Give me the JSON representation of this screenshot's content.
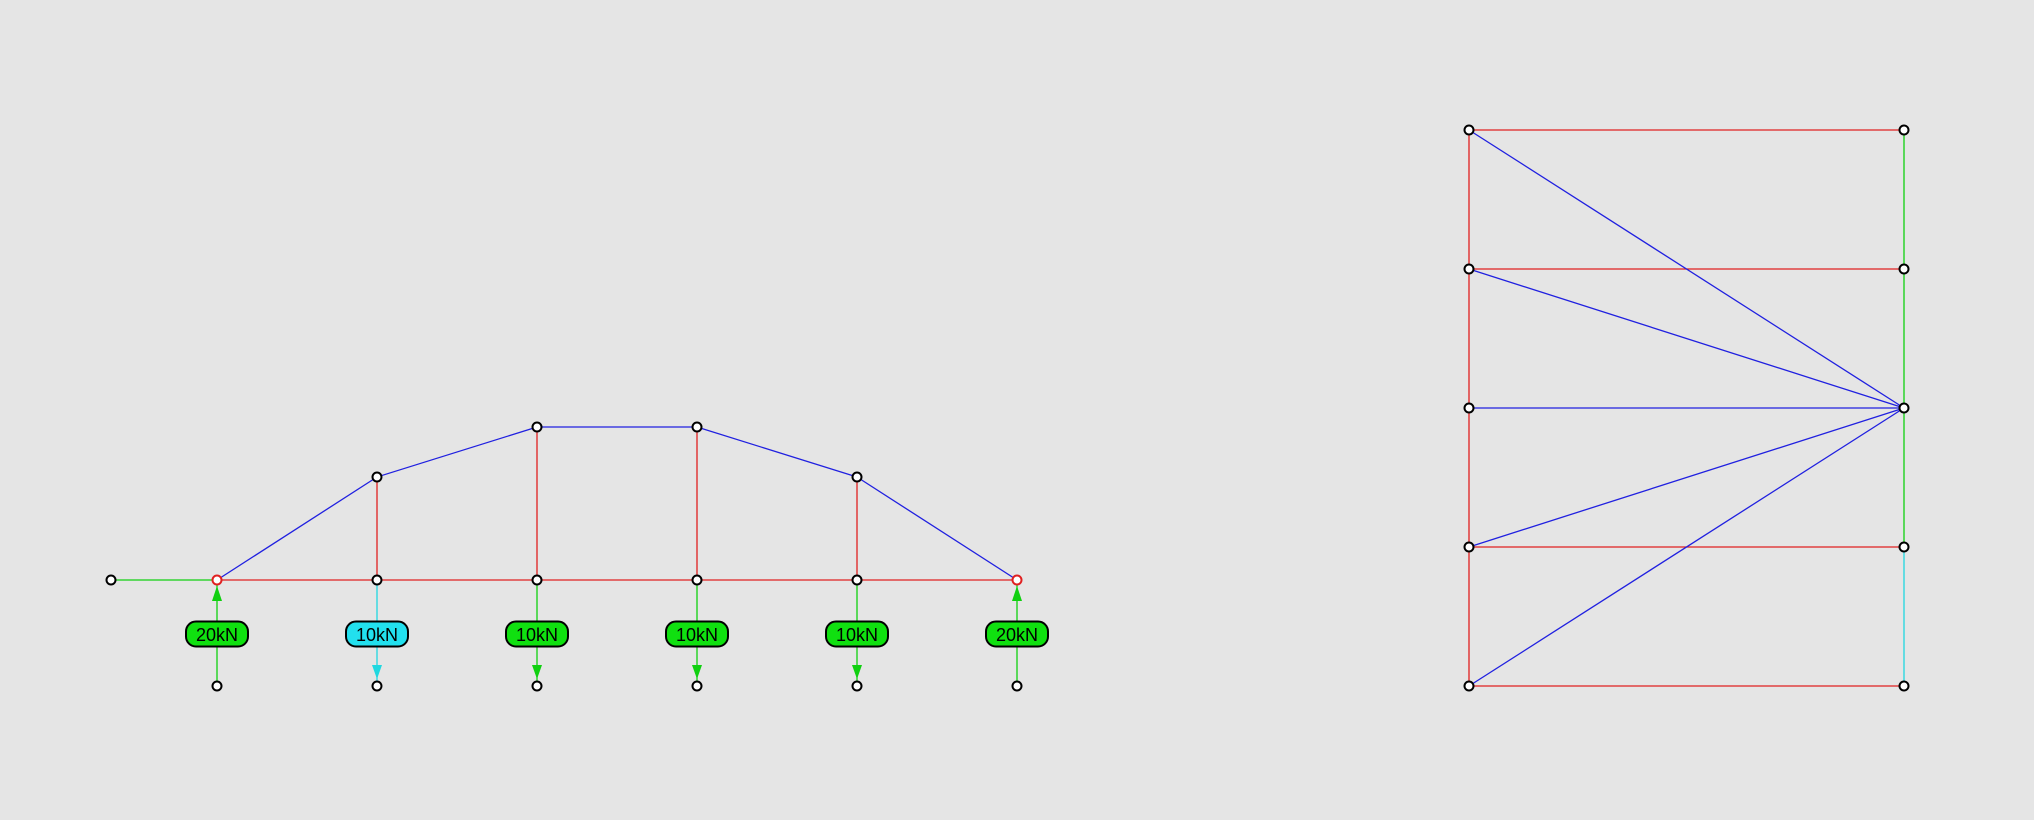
{
  "colors": {
    "background": "#e5e5e5",
    "tension_member": "#e02020",
    "compression_member": "#2020e0",
    "load_line_applied": "#10d010",
    "load_line_selected": "#20d8e0",
    "label_fill_applied": "#10e010",
    "label_fill_selected": "#22e0ee",
    "support_node": "#e02020",
    "free_node": "#000000"
  },
  "truss": {
    "support_nodes": 2,
    "free_nodes": 10,
    "members": {
      "top_chord": 5,
      "bottom_chord": 5,
      "verticals": 4,
      "diagonals": 0
    }
  },
  "loads": [
    {
      "label": "20kN",
      "direction": "up",
      "kind": "reaction",
      "state": "applied"
    },
    {
      "label": "10kN",
      "direction": "down",
      "kind": "applied",
      "state": "selected"
    },
    {
      "label": "10kN",
      "direction": "down",
      "kind": "applied",
      "state": "applied"
    },
    {
      "label": "10kN",
      "direction": "down",
      "kind": "applied",
      "state": "applied"
    },
    {
      "label": "10kN",
      "direction": "down",
      "kind": "applied",
      "state": "applied"
    },
    {
      "label": "20kN",
      "direction": "up",
      "kind": "reaction",
      "state": "applied"
    }
  ],
  "force_diagram": {
    "load_line_nodes": 5,
    "interior_nodes": 5,
    "pole_node": 1,
    "horizontal_rays": 5,
    "fan_rays": 5
  }
}
